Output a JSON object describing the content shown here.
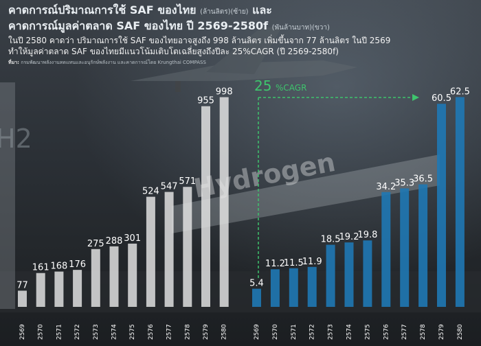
{
  "header": {
    "title_line1": "คาดการณ์ปริมาณการใช้ SAF ของไทย",
    "title_line1_unit": "(ล้านลิตร)(ซ้าย)",
    "title_line1_end": "และ",
    "title_line2": "คาดการณ์มูลค่าตลาด SAF ของไทย ปี 2569-2580f",
    "title_line2_unit": "(พันล้านบาท)(ขวา)",
    "desc_line1": "ในปี 2580 คาดว่า ปริมาณการใช้ SAF ของไทยอาจสูงถึง 998 ล้านลิตร เพิ่มขึ้นจาก 77 ล้านลิตร ในปี 2569",
    "desc_line2": "ทำให้มูลค่าตลาด SAF ของไทยมีแนวโน้มเติบโตเฉลี่ยสูงถึงปีละ 25%CAGR (ปี 2569-2580f)",
    "source_label": "ที่มา:",
    "source_text": "กรมพัฒนาพลังงานทดแทนและอนุรักษ์พลังงาน และคาดการณ์โดย Krungthai COMPASS"
  },
  "background": {
    "sign_text": "Hydrogen",
    "h2_text": "H2"
  },
  "colors": {
    "volume_bar": "#e6e6e6",
    "value_bar": "#1f78b4",
    "cagr_line": "#3ec46d",
    "label": "#ffffff"
  },
  "chart_data": [
    {
      "type": "bar",
      "categories": [
        "2569",
        "2570",
        "2571",
        "2572",
        "2573",
        "2574",
        "2575",
        "2576",
        "2577",
        "2578",
        "2579",
        "2580"
      ],
      "values": [
        77,
        161,
        168,
        176,
        275,
        288,
        301,
        524,
        547,
        571,
        955,
        998
      ],
      "ylim": [
        0,
        1150
      ]
    },
    {
      "type": "bar",
      "categories": [
        "2569",
        "2570",
        "2571",
        "2572",
        "2573",
        "2574",
        "2575",
        "2576",
        "2577",
        "2578",
        "2579",
        "2580"
      ],
      "values": [
        5.4,
        11.2,
        11.5,
        11.9,
        18.5,
        19.2,
        19.8,
        34.2,
        35.3,
        36.5,
        60.5,
        62.5
      ],
      "ylim": [
        0,
        72
      ],
      "annotation": {
        "cagr_value": "25",
        "cagr_unit": "%CAGR"
      }
    }
  ]
}
